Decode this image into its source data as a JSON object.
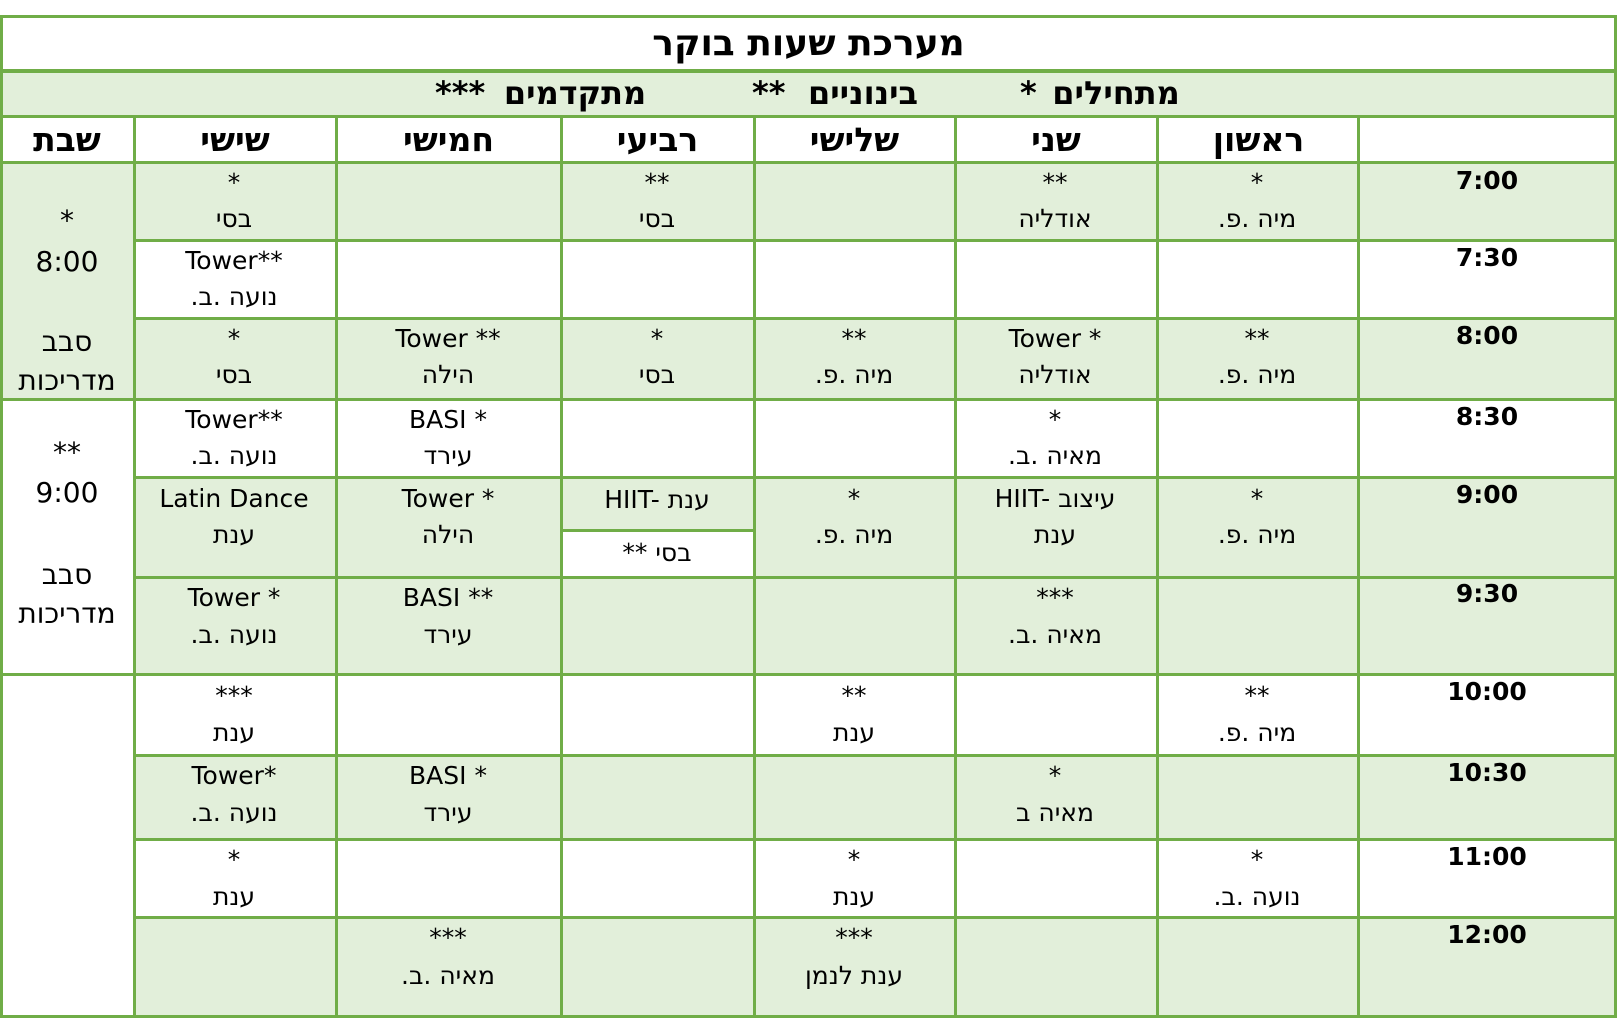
{
  "title": "מערכת שעות בוקר",
  "legend": {
    "beginners_label": "מתחילים",
    "beginners_stars": "*",
    "intermediate_label": "בינוניים",
    "intermediate_stars": "**",
    "advanced_label": "מתקדמים",
    "advanced_stars": "***"
  },
  "days": [
    "ראשון",
    "שני",
    "שלישי",
    "רביעי",
    "חמישי",
    "שישי",
    "שבת"
  ],
  "times": [
    "7:00",
    "7:30",
    "8:00",
    "8:30",
    "9:00",
    "9:30",
    "10:00",
    "10:30",
    "11:00",
    "12:00"
  ],
  "colors": {
    "border": "#70ad47",
    "shade": "#e2efda",
    "background": "#ffffff"
  },
  "saturday": {
    "block1": {
      "level": "*",
      "time": "8:00",
      "note1": "סבב",
      "note2": "מדריכות"
    },
    "block2": {
      "level": "**",
      "time": "9:00",
      "note1": "סבב",
      "note2": "מדריכות"
    }
  },
  "grid": {
    "r0": {
      "sun": {
        "level": "*",
        "name": "מיה .פ."
      },
      "mon": {
        "level": "**",
        "name": "אודליה"
      },
      "wed": {
        "level": "**",
        "name": "בסי"
      },
      "fri": {
        "level": "*",
        "name": "בסי"
      }
    },
    "r1": {
      "fri": {
        "level": "Tower**",
        "name": "נועה .ב."
      }
    },
    "r2": {
      "sun": {
        "level": "**",
        "name": "מיה .פ."
      },
      "mon": {
        "level": "Tower *",
        "name": "אודליה"
      },
      "tue": {
        "level": "**",
        "name": "מיה .פ."
      },
      "wed": {
        "level": "*",
        "name": "בסי"
      },
      "thu": {
        "level": "Tower **",
        "name": "הילה"
      },
      "fri": {
        "level": "*",
        "name": "בסי"
      }
    },
    "r3": {
      "mon": {
        "level": "*",
        "name": "מאיה .ב."
      },
      "thu": {
        "level": "BASI *",
        "name": "עירד"
      },
      "fri": {
        "level": "Tower**",
        "name": "נועה .ב."
      }
    },
    "r4": {
      "sun": {
        "level": "*",
        "name": "מיה .פ."
      },
      "mon": {
        "level": "HIIT- עיצוב",
        "name": "ענת"
      },
      "tue": {
        "level": "*",
        "name": "מיה .פ."
      },
      "wed_top": "HIIT- ענת",
      "wed_bottom": "** בסי",
      "thu": {
        "level": "Tower *",
        "name": "הילה"
      },
      "fri": {
        "level": "Latin Dance",
        "name": "ענת"
      }
    },
    "r5": {
      "mon": {
        "level": "***",
        "name": "מאיה .ב."
      },
      "thu": {
        "level": "BASI **",
        "name": "עירד"
      },
      "fri": {
        "level": "Tower *",
        "name": "נועה .ב."
      }
    },
    "r6": {
      "sun": {
        "level": "**",
        "name": "מיה .פ."
      },
      "tue": {
        "level": "**",
        "name": "ענת"
      },
      "fri": {
        "level": "***",
        "name": "ענת"
      }
    },
    "r7": {
      "mon": {
        "level": "*",
        "name": "מאיה ב"
      },
      "thu": {
        "level": "BASI *",
        "name": "עירד"
      },
      "fri": {
        "level": "Tower*",
        "name": "נועה .ב."
      }
    },
    "r8": {
      "sun": {
        "level": "*",
        "name": "נועה .ב."
      },
      "tue": {
        "level": "*",
        "name": "ענת"
      },
      "fri": {
        "level": "*",
        "name": "ענת"
      }
    },
    "r9": {
      "tue": {
        "level": "***",
        "name": "ענת לנמן"
      },
      "thu": {
        "level": "***",
        "name": "מאיה .ב."
      }
    }
  }
}
